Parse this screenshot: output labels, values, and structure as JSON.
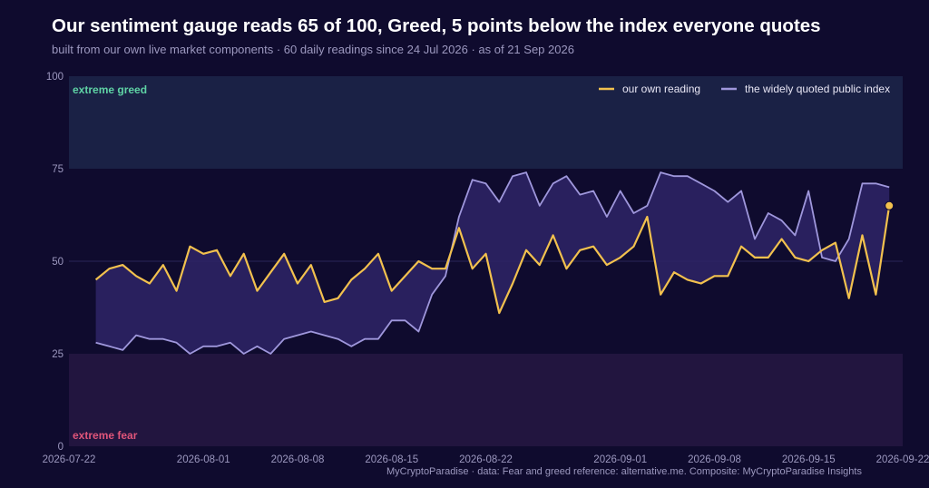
{
  "header": {
    "title": "Our sentiment gauge reads 65 of 100, Greed, 5 points below the index everyone quotes",
    "subtitle": "built from our own live market components · 60 daily readings since 24 Jul 2026 · as of 21 Sep 2026"
  },
  "footer": {
    "credit": "MyCryptoParadise  ·  data: Fear and greed reference: alternative.me. Composite: MyCryptoParadise Insights"
  },
  "colors": {
    "background": "#0f0b2e",
    "ours": "#f2c14e",
    "index": "#9f97dc",
    "band_fill": "#2e2566",
    "greed_zone": "#1a2145",
    "fear_zone": "#22153f",
    "greed_label": "#5fd3a5",
    "fear_label": "#e0557a"
  },
  "chart_data": {
    "type": "line",
    "ylim": [
      0,
      100
    ],
    "yticks": [
      0,
      25,
      50,
      75,
      100
    ],
    "xlim": [
      "2026-07-22",
      "2026-09-22"
    ],
    "xticks": [
      "2026-07-22",
      "2026-08-01",
      "2026-08-08",
      "2026-08-15",
      "2026-08-22",
      "2026-09-01",
      "2026-09-08",
      "2026-09-15",
      "2026-09-22"
    ],
    "zones": [
      {
        "label": "extreme greed",
        "from": 75,
        "to": 100
      },
      {
        "label": "extreme fear",
        "from": 0,
        "to": 25
      }
    ],
    "legend_position": "top-right",
    "x_start": "2026-07-24",
    "latest_label": "65",
    "series": [
      {
        "name": "our own reading",
        "values": [
          45,
          48,
          49,
          46,
          44,
          49,
          42,
          54,
          52,
          53,
          46,
          52,
          42,
          47,
          52,
          44,
          49,
          39,
          40,
          45,
          48,
          52,
          42,
          46,
          50,
          48,
          48,
          59,
          48,
          52,
          36,
          44,
          53,
          49,
          57,
          48,
          53,
          54,
          49,
          51,
          54,
          62,
          41,
          47,
          45,
          44,
          46,
          46,
          54,
          51,
          51,
          56,
          51,
          50,
          53,
          55,
          40,
          57,
          41,
          65
        ]
      },
      {
        "name": "the widely quoted public index",
        "values": [
          28,
          27,
          26,
          30,
          29,
          29,
          28,
          25,
          27,
          27,
          28,
          25,
          27,
          25,
          29,
          30,
          31,
          30,
          29,
          27,
          29,
          29,
          34,
          34,
          31,
          41,
          46,
          62,
          72,
          71,
          66,
          73,
          74,
          65,
          71,
          73,
          68,
          69,
          62,
          69,
          63,
          65,
          74,
          73,
          73,
          71,
          69,
          66,
          69,
          56,
          63,
          61,
          57,
          69,
          51,
          50,
          56,
          71,
          71,
          70
        ]
      }
    ]
  }
}
